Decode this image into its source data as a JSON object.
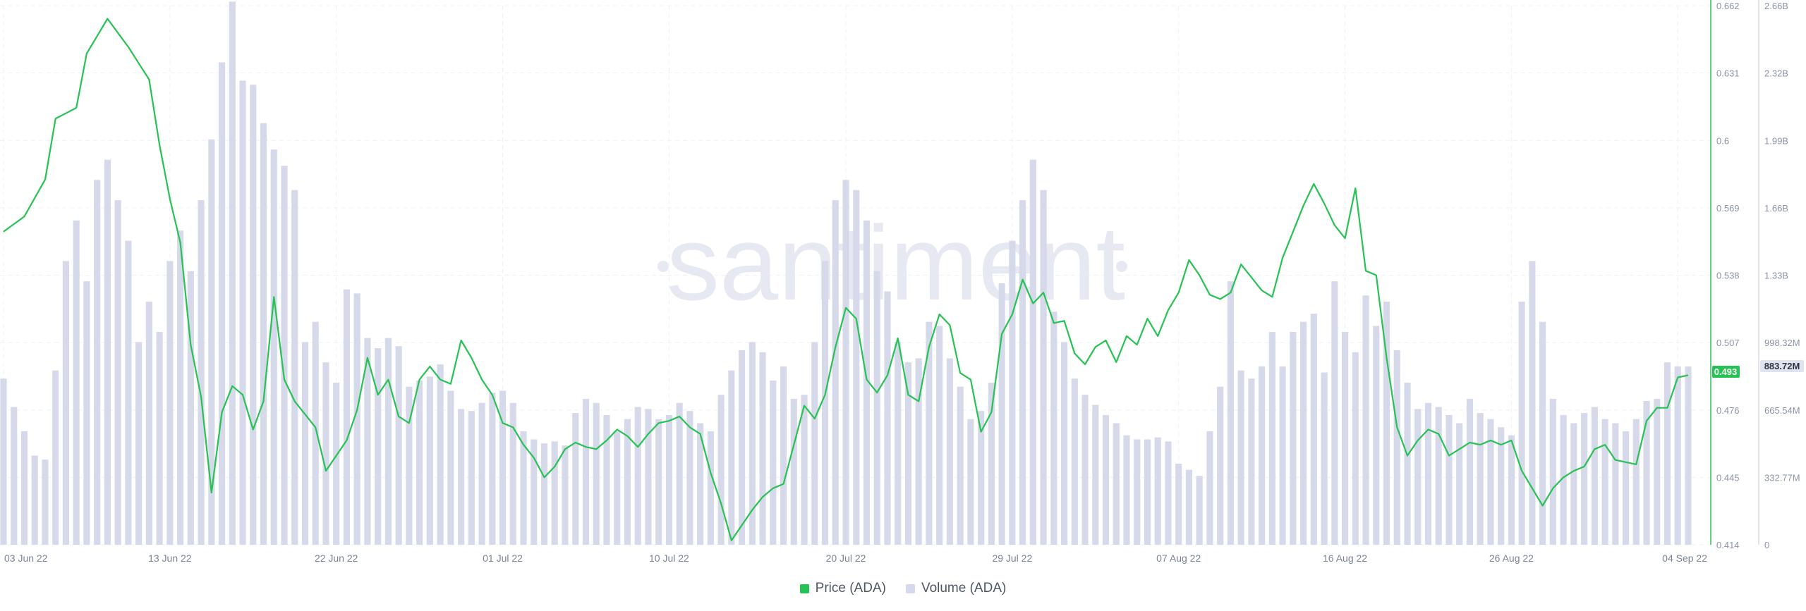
{
  "legend": {
    "price": "Price (ADA)",
    "volume": "Volume (ADA)"
  },
  "watermark": "santiment",
  "colors": {
    "price": "#26c253",
    "volume": "#d6d9ea",
    "grid": "#edf0f5",
    "axis_text": "#8a94a6"
  },
  "chart_data": {
    "type": "line",
    "x_ticks": [
      "03 Jun 22",
      "13 Jun 22",
      "22 Jun 22",
      "01 Jul 22",
      "10 Jul 22",
      "20 Jul 22",
      "29 Jul 22",
      "07 Aug 22",
      "16 Aug 22",
      "26 Aug 22",
      "04 Sep 22"
    ],
    "y_left_ticks": [
      "0.414",
      "0.445",
      "0.476",
      "0.507",
      "0.538",
      "0.569",
      "0.6",
      "0.631",
      "0.662"
    ],
    "y_right_ticks": [
      "0",
      "332.77M",
      "665.54M",
      "998.32M",
      "1.33B",
      "1.66B",
      "1.99B",
      "2.32B",
      "2.66B"
    ],
    "y_left_range": [
      0.414,
      0.662
    ],
    "y_right_range": [
      0,
      2660000000
    ],
    "current_price_label": "0.493",
    "current_volume_label": "883.72M",
    "price_keypoints": [
      [
        0,
        0.558
      ],
      [
        2,
        0.565
      ],
      [
        4,
        0.582
      ],
      [
        5,
        0.61
      ],
      [
        7,
        0.615
      ],
      [
        8,
        0.64
      ],
      [
        10,
        0.656
      ],
      [
        12,
        0.643
      ],
      [
        14,
        0.628
      ],
      [
        15,
        0.598
      ],
      [
        16,
        0.573
      ],
      [
        17,
        0.553
      ],
      [
        18,
        0.506
      ],
      [
        19,
        0.482
      ],
      [
        20,
        0.438
      ],
      [
        21,
        0.475
      ],
      [
        22,
        0.487
      ],
      [
        23,
        0.483
      ],
      [
        24,
        0.467
      ],
      [
        25,
        0.48
      ],
      [
        26,
        0.528
      ],
      [
        27,
        0.49
      ],
      [
        28,
        0.48
      ],
      [
        30,
        0.468
      ],
      [
        31,
        0.448
      ],
      [
        32,
        0.455
      ],
      [
        33,
        0.462
      ],
      [
        34,
        0.476
      ],
      [
        35,
        0.5
      ],
      [
        36,
        0.483
      ],
      [
        37,
        0.49
      ],
      [
        38,
        0.473
      ],
      [
        39,
        0.47
      ],
      [
        40,
        0.49
      ],
      [
        41,
        0.496
      ],
      [
        42,
        0.49
      ],
      [
        43,
        0.488
      ],
      [
        44,
        0.508
      ],
      [
        45,
        0.5
      ],
      [
        46,
        0.49
      ],
      [
        47,
        0.483
      ],
      [
        48,
        0.47
      ],
      [
        49,
        0.468
      ],
      [
        50,
        0.46
      ],
      [
        51,
        0.454
      ],
      [
        52,
        0.445
      ],
      [
        53,
        0.45
      ],
      [
        54,
        0.458
      ],
      [
        55,
        0.461
      ],
      [
        56,
        0.459
      ],
      [
        57,
        0.458
      ],
      [
        58,
        0.462
      ],
      [
        59,
        0.467
      ],
      [
        60,
        0.464
      ],
      [
        61,
        0.459
      ],
      [
        62,
        0.465
      ],
      [
        63,
        0.47
      ],
      [
        64,
        0.471
      ],
      [
        65,
        0.473
      ],
      [
        66,
        0.468
      ],
      [
        67,
        0.465
      ],
      [
        68,
        0.447
      ],
      [
        69,
        0.433
      ],
      [
        70,
        0.416
      ],
      [
        71,
        0.423
      ],
      [
        72,
        0.43
      ],
      [
        73,
        0.436
      ],
      [
        74,
        0.44
      ],
      [
        75,
        0.442
      ],
      [
        76,
        0.46
      ],
      [
        77,
        0.478
      ],
      [
        78,
        0.472
      ],
      [
        79,
        0.483
      ],
      [
        80,
        0.505
      ],
      [
        81,
        0.523
      ],
      [
        82,
        0.518
      ],
      [
        83,
        0.49
      ],
      [
        84,
        0.484
      ],
      [
        85,
        0.492
      ],
      [
        86,
        0.509
      ],
      [
        87,
        0.483
      ],
      [
        88,
        0.48
      ],
      [
        89,
        0.505
      ],
      [
        90,
        0.52
      ],
      [
        91,
        0.515
      ],
      [
        92,
        0.493
      ],
      [
        93,
        0.49
      ],
      [
        94,
        0.466
      ],
      [
        95,
        0.475
      ],
      [
        96,
        0.511
      ],
      [
        97,
        0.52
      ],
      [
        98,
        0.536
      ],
      [
        99,
        0.525
      ],
      [
        100,
        0.53
      ],
      [
        101,
        0.516
      ],
      [
        102,
        0.517
      ],
      [
        103,
        0.502
      ],
      [
        104,
        0.497
      ],
      [
        105,
        0.505
      ],
      [
        106,
        0.508
      ],
      [
        107,
        0.498
      ],
      [
        108,
        0.51
      ],
      [
        109,
        0.506
      ],
      [
        110,
        0.518
      ],
      [
        111,
        0.51
      ],
      [
        112,
        0.522
      ],
      [
        113,
        0.53
      ],
      [
        114,
        0.545
      ],
      [
        115,
        0.538
      ],
      [
        116,
        0.529
      ],
      [
        117,
        0.527
      ],
      [
        118,
        0.53
      ],
      [
        119,
        0.543
      ],
      [
        120,
        0.537
      ],
      [
        121,
        0.531
      ],
      [
        122,
        0.528
      ],
      [
        123,
        0.546
      ],
      [
        124,
        0.558
      ],
      [
        125,
        0.57
      ],
      [
        126,
        0.58
      ],
      [
        127,
        0.571
      ],
      [
        128,
        0.561
      ],
      [
        129,
        0.555
      ],
      [
        130,
        0.578
      ],
      [
        131,
        0.54
      ],
      [
        132,
        0.538
      ],
      [
        133,
        0.5
      ],
      [
        134,
        0.468
      ],
      [
        135,
        0.455
      ],
      [
        136,
        0.462
      ],
      [
        137,
        0.467
      ],
      [
        138,
        0.465
      ],
      [
        139,
        0.455
      ],
      [
        140,
        0.458
      ],
      [
        141,
        0.461
      ],
      [
        142,
        0.46
      ],
      [
        143,
        0.462
      ],
      [
        144,
        0.46
      ],
      [
        145,
        0.462
      ],
      [
        146,
        0.448
      ],
      [
        147,
        0.44
      ],
      [
        148,
        0.432
      ],
      [
        149,
        0.44
      ],
      [
        150,
        0.445
      ],
      [
        151,
        0.448
      ],
      [
        152,
        0.45
      ],
      [
        153,
        0.458
      ],
      [
        154,
        0.46
      ],
      [
        155,
        0.453
      ],
      [
        156,
        0.452
      ],
      [
        157,
        0.451
      ],
      [
        158,
        0.471
      ],
      [
        159,
        0.477
      ],
      [
        160,
        0.477
      ],
      [
        161,
        0.491
      ],
      [
        162,
        0.492
      ]
    ],
    "volume_keypoints": [
      [
        0,
        820
      ],
      [
        1,
        680
      ],
      [
        2,
        560
      ],
      [
        3,
        440
      ],
      [
        4,
        420
      ],
      [
        5,
        860
      ],
      [
        6,
        1400
      ],
      [
        7,
        1600
      ],
      [
        8,
        1300
      ],
      [
        9,
        1800
      ],
      [
        10,
        1900
      ],
      [
        11,
        1700
      ],
      [
        12,
        1500
      ],
      [
        13,
        1000
      ],
      [
        14,
        1200
      ],
      [
        15,
        1050
      ],
      [
        16,
        1400
      ],
      [
        17,
        1550
      ],
      [
        18,
        1350
      ],
      [
        19,
        1700
      ],
      [
        20,
        2000
      ],
      [
        21,
        2380
      ],
      [
        22,
        2680
      ],
      [
        23,
        2290
      ],
      [
        24,
        2270
      ],
      [
        25,
        2080
      ],
      [
        26,
        1950
      ],
      [
        27,
        1870
      ],
      [
        28,
        1750
      ],
      [
        29,
        1000
      ],
      [
        30,
        1100
      ],
      [
        31,
        900
      ],
      [
        32,
        800
      ],
      [
        33,
        1260
      ],
      [
        34,
        1240
      ],
      [
        35,
        1020
      ],
      [
        36,
        970
      ],
      [
        37,
        1020
      ],
      [
        38,
        980
      ],
      [
        39,
        780
      ],
      [
        40,
        810
      ],
      [
        41,
        830
      ],
      [
        42,
        890
      ],
      [
        43,
        760
      ],
      [
        44,
        670
      ],
      [
        45,
        660
      ],
      [
        46,
        700
      ],
      [
        47,
        750
      ],
      [
        48,
        760
      ],
      [
        49,
        700
      ],
      [
        50,
        560
      ],
      [
        51,
        520
      ],
      [
        52,
        500
      ],
      [
        53,
        510
      ],
      [
        54,
        490
      ],
      [
        55,
        650
      ],
      [
        56,
        720
      ],
      [
        57,
        700
      ],
      [
        58,
        640
      ],
      [
        59,
        560
      ],
      [
        60,
        620
      ],
      [
        61,
        680
      ],
      [
        62,
        670
      ],
      [
        63,
        620
      ],
      [
        64,
        640
      ],
      [
        65,
        700
      ],
      [
        66,
        660
      ],
      [
        67,
        600
      ],
      [
        68,
        560
      ],
      [
        69,
        740
      ],
      [
        70,
        860
      ],
      [
        71,
        960
      ],
      [
        72,
        1000
      ],
      [
        73,
        950
      ],
      [
        74,
        810
      ],
      [
        75,
        880
      ],
      [
        76,
        720
      ],
      [
        77,
        740
      ],
      [
        78,
        1000
      ],
      [
        79,
        1400
      ],
      [
        80,
        1700
      ],
      [
        81,
        1800
      ],
      [
        82,
        1750
      ],
      [
        83,
        1600
      ],
      [
        84,
        1350
      ],
      [
        85,
        1250
      ],
      [
        86,
        1000
      ],
      [
        87,
        900
      ],
      [
        88,
        920
      ],
      [
        89,
        1100
      ],
      [
        90,
        1080
      ],
      [
        91,
        920
      ],
      [
        92,
        780
      ],
      [
        93,
        620
      ],
      [
        94,
        660
      ],
      [
        95,
        800
      ],
      [
        96,
        1290
      ],
      [
        97,
        1500
      ],
      [
        98,
        1700
      ],
      [
        99,
        1900
      ],
      [
        100,
        1750
      ],
      [
        101,
        1150
      ],
      [
        102,
        1000
      ],
      [
        103,
        820
      ],
      [
        104,
        740
      ],
      [
        105,
        690
      ],
      [
        106,
        640
      ],
      [
        107,
        600
      ],
      [
        108,
        540
      ],
      [
        109,
        520
      ],
      [
        110,
        520
      ],
      [
        111,
        530
      ],
      [
        112,
        510
      ],
      [
        113,
        400
      ],
      [
        114,
        370
      ],
      [
        115,
        340
      ],
      [
        116,
        560
      ],
      [
        117,
        780
      ],
      [
        118,
        1300
      ],
      [
        119,
        860
      ],
      [
        120,
        820
      ],
      [
        121,
        880
      ],
      [
        122,
        1050
      ],
      [
        123,
        880
      ],
      [
        124,
        1050
      ],
      [
        125,
        1100
      ],
      [
        126,
        1140
      ],
      [
        127,
        850
      ],
      [
        128,
        1300
      ],
      [
        129,
        1050
      ],
      [
        130,
        950
      ],
      [
        131,
        1230
      ],
      [
        132,
        1080
      ],
      [
        133,
        1200
      ],
      [
        134,
        960
      ],
      [
        135,
        800
      ],
      [
        136,
        670
      ],
      [
        137,
        700
      ],
      [
        138,
        680
      ],
      [
        139,
        640
      ],
      [
        140,
        600
      ],
      [
        141,
        720
      ],
      [
        142,
        650
      ],
      [
        143,
        620
      ],
      [
        144,
        580
      ],
      [
        145,
        540
      ],
      [
        146,
        1200
      ],
      [
        147,
        1400
      ],
      [
        148,
        1100
      ],
      [
        149,
        720
      ],
      [
        150,
        640
      ],
      [
        151,
        600
      ],
      [
        152,
        650
      ],
      [
        153,
        680
      ],
      [
        154,
        620
      ],
      [
        155,
        600
      ],
      [
        156,
        560
      ],
      [
        157,
        620
      ],
      [
        158,
        710
      ],
      [
        159,
        720
      ],
      [
        160,
        900
      ],
      [
        161,
        880
      ],
      [
        162,
        880
      ]
    ]
  }
}
